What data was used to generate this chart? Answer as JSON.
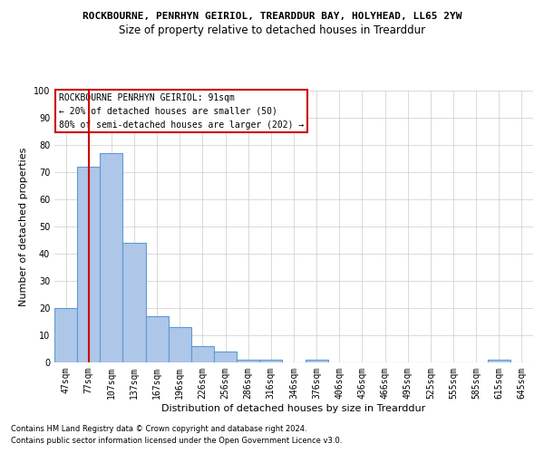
{
  "title": "ROCKBOURNE, PENRHYN GEIRIOL, TREARDDUR BAY, HOLYHEAD, LL65 2YW",
  "subtitle": "Size of property relative to detached houses in Trearddur",
  "xlabel": "Distribution of detached houses by size in Trearddur",
  "ylabel": "Number of detached properties",
  "categories": [
    "47sqm",
    "77sqm",
    "107sqm",
    "137sqm",
    "167sqm",
    "196sqm",
    "226sqm",
    "256sqm",
    "286sqm",
    "316sqm",
    "346sqm",
    "376sqm",
    "406sqm",
    "436sqm",
    "466sqm",
    "495sqm",
    "525sqm",
    "555sqm",
    "585sqm",
    "615sqm",
    "645sqm"
  ],
  "values": [
    20,
    72,
    77,
    44,
    17,
    13,
    6,
    4,
    1,
    1,
    0,
    1,
    0,
    0,
    0,
    0,
    0,
    0,
    0,
    1,
    0
  ],
  "bar_color": "#aec6e8",
  "bar_edge_color": "#5b9bd5",
  "ylim": [
    0,
    100
  ],
  "yticks": [
    0,
    10,
    20,
    30,
    40,
    50,
    60,
    70,
    80,
    90,
    100
  ],
  "vline_x": 1,
  "vline_color": "#cc0000",
  "annotation_text": "ROCKBOURNE PENRHYN GEIRIOL: 91sqm\n← 20% of detached houses are smaller (50)\n80% of semi-detached houses are larger (202) →",
  "annotation_box_color": "#ffffff",
  "annotation_box_edge_color": "#cc0000",
  "footer_line1": "Contains HM Land Registry data © Crown copyright and database right 2024.",
  "footer_line2": "Contains public sector information licensed under the Open Government Licence v3.0.",
  "background_color": "#ffffff",
  "grid_color": "#cccccc",
  "title_fontsize": 8,
  "subtitle_fontsize": 8.5,
  "ylabel_fontsize": 8,
  "xlabel_fontsize": 8,
  "tick_fontsize": 7,
  "annotation_fontsize": 7,
  "footer_fontsize": 6
}
